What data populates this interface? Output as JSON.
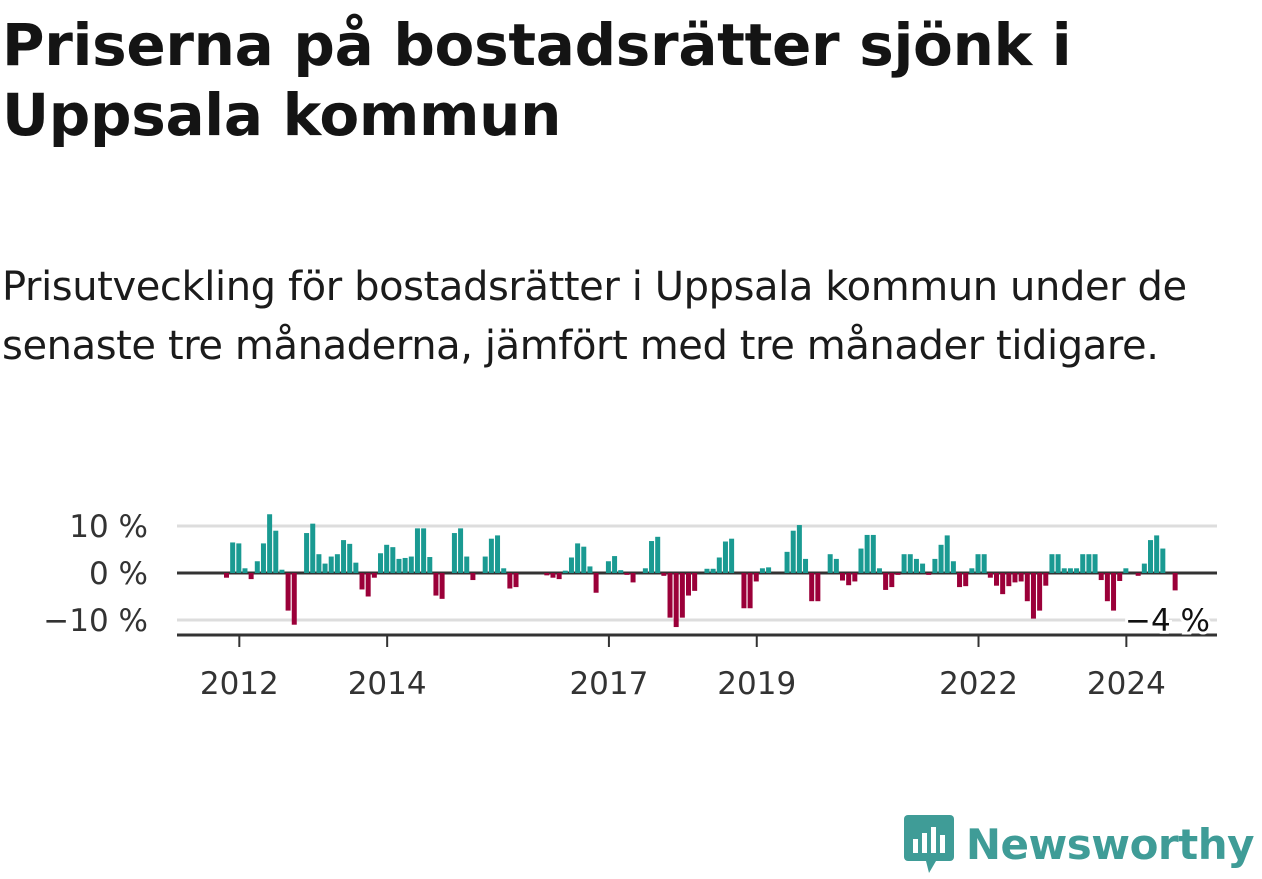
{
  "title": "Priserna på bostadsrätter sjönk i Uppsala kommun",
  "subtitle": "Prisutveckling för bostadsrätter i Uppsala kommun under de senaste tre månaderna, jämfört med tre månader tidigare.",
  "brand": {
    "name": "Newsworthy",
    "icon": "newsworthy-logo-icon"
  },
  "colors": {
    "positive": "#1a9a92",
    "negative": "#9b0039",
    "grid": "#dddddd",
    "axis": "#333333"
  },
  "chart_data": {
    "type": "bar",
    "x_start": "2011-11",
    "y_unit": "%",
    "ylim": [
      -13,
      12.5
    ],
    "yticks": [
      10,
      0,
      -10
    ],
    "ytick_labels": [
      "10 %",
      "0 %",
      "−10 %"
    ],
    "xticks": [
      2012,
      2014,
      2017,
      2019,
      2022,
      2024
    ],
    "xtick_labels": [
      "2012",
      "2014",
      "2017",
      "2019",
      "2022",
      "2024"
    ],
    "end_label": "−4 %",
    "values": [
      -1,
      6.5,
      6.3,
      1,
      -1.3,
      2.5,
      6.3,
      12.5,
      9,
      0.7,
      -8,
      -11,
      0,
      8.5,
      10.5,
      4,
      2,
      3.5,
      4,
      7,
      6.2,
      2.2,
      -3.5,
      -5,
      -1,
      4.2,
      6,
      5.5,
      3,
      3.2,
      3.5,
      9.5,
      9.5,
      3.4,
      -4.8,
      -5.5,
      0,
      8.5,
      9.5,
      3.5,
      -1.5,
      0,
      3.5,
      7.3,
      8,
      1,
      -3.3,
      -3,
      0,
      0,
      0,
      0,
      -0.5,
      -1,
      -1.3,
      0.5,
      3.3,
      6.3,
      5.6,
      1.4,
      -4.2,
      0,
      2.5,
      3.6,
      0.6,
      -0.4,
      -2,
      0,
      1,
      6.8,
      7.7,
      -0.6,
      -9.5,
      -11.5,
      -9.5,
      -4.8,
      -3.8,
      0,
      0.9,
      0.9,
      3.3,
      6.7,
      7.3,
      0,
      -7.5,
      -7.5,
      -1.8,
      1,
      1.2,
      0,
      0,
      4.5,
      9,
      10.2,
      3,
      -6,
      -6,
      0,
      4,
      3,
      -1.6,
      -2.6,
      -1.8,
      5.2,
      8.1,
      8.1,
      1,
      -3.6,
      -3,
      -0.4,
      4,
      4,
      3,
      2,
      -0.4,
      3,
      6,
      8,
      2.5,
      -3,
      -2.8,
      1,
      4,
      4,
      -1,
      -2.7,
      -4.5,
      -2.8,
      -2,
      -1.8,
      -6,
      -9.7,
      -8,
      -2.7,
      4,
      4,
      1,
      1,
      1,
      4,
      4,
      4,
      -1.5,
      -6,
      -8,
      -1.7,
      1,
      0,
      -0.6,
      2,
      7,
      8,
      5.2,
      0,
      -3.7
    ]
  }
}
